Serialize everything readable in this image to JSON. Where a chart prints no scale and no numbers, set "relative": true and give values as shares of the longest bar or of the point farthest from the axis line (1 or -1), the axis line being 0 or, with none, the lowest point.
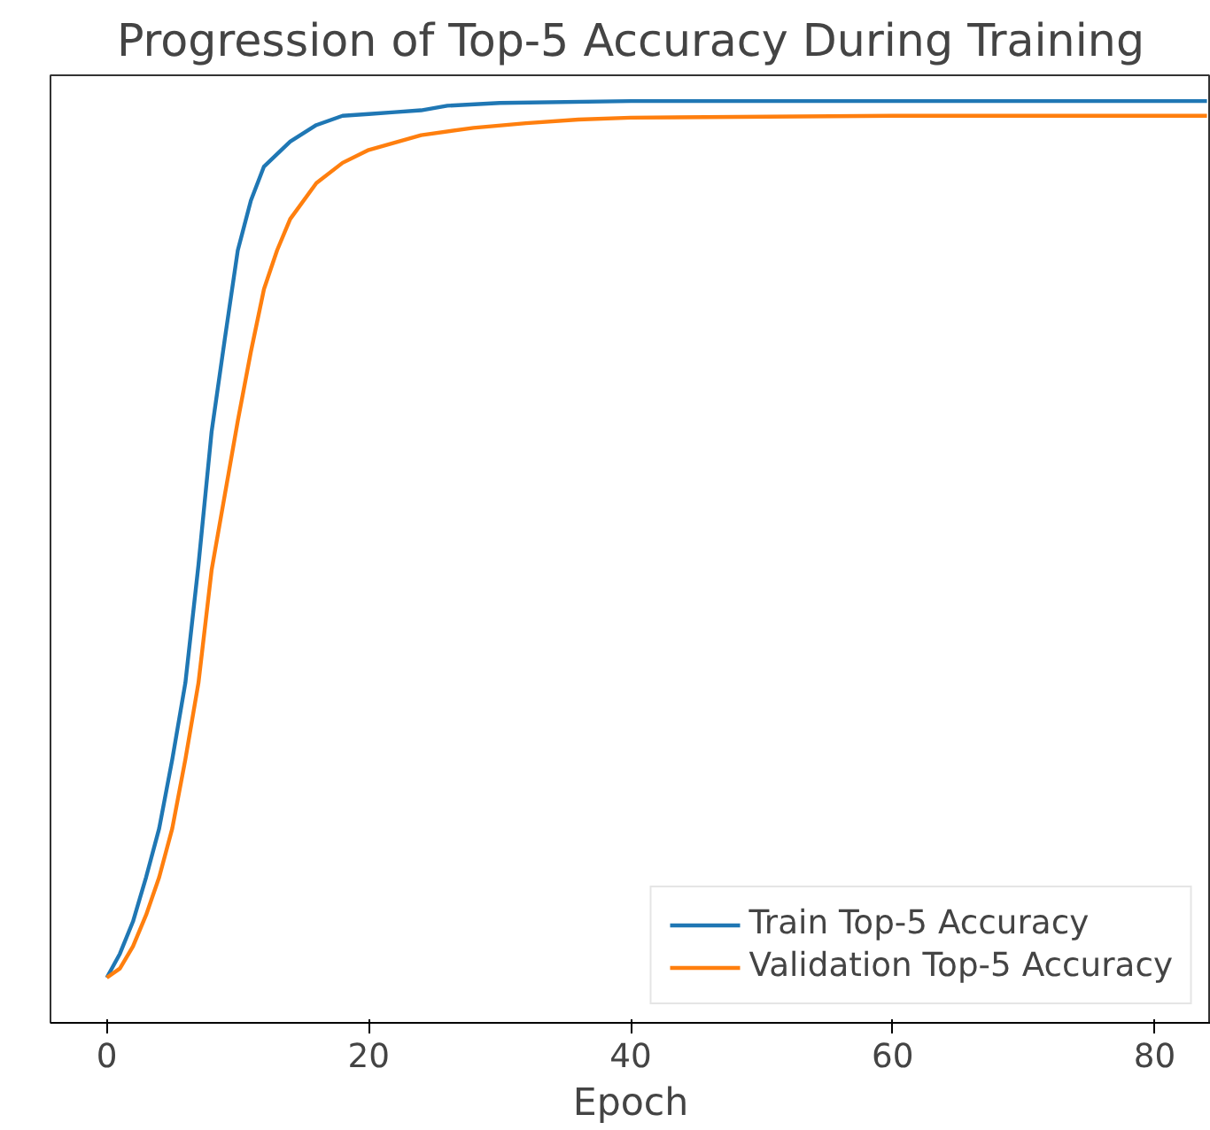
{
  "chart_data": {
    "type": "line",
    "title": "Progression of Top-5 Accuracy During Training",
    "xlabel": "Epoch",
    "relative": true,
    "xlim": [
      -4.3,
      84.3
    ],
    "xticks": [
      0,
      20,
      40,
      60,
      80
    ],
    "grid": false,
    "legend": "bottom right",
    "line_style": "solid",
    "series": [
      {
        "name": "Train Top-5 Accuracy",
        "color": "#1f77b4",
        "x": [
          0,
          1,
          2,
          3,
          4,
          5,
          6,
          7,
          8,
          9,
          10,
          11,
          12,
          14,
          16,
          18,
          20,
          22,
          24,
          26,
          30,
          40,
          84
        ],
        "values": [
          0.049,
          0.075,
          0.11,
          0.158,
          0.211,
          0.286,
          0.369,
          0.497,
          0.641,
          0.741,
          0.838,
          0.892,
          0.929,
          0.956,
          0.974,
          0.984,
          0.986,
          0.988,
          0.99,
          0.995,
          0.998,
          1,
          1
        ]
      },
      {
        "name": "Validation Top-5 Accuracy",
        "color": "#ff7f0e",
        "x": [
          0,
          1,
          2,
          3,
          4,
          5,
          6,
          7,
          8,
          9,
          10,
          11,
          12,
          13,
          14,
          16,
          18,
          20,
          24,
          28,
          32,
          36,
          40,
          60,
          84
        ],
        "values": [
          0.049,
          0.059,
          0.083,
          0.117,
          0.158,
          0.211,
          0.286,
          0.369,
          0.491,
          0.572,
          0.653,
          0.728,
          0.796,
          0.838,
          0.872,
          0.911,
          0.933,
          0.947,
          0.963,
          0.971,
          0.976,
          0.98,
          0.982,
          0.984,
          0.984
        ]
      }
    ]
  }
}
